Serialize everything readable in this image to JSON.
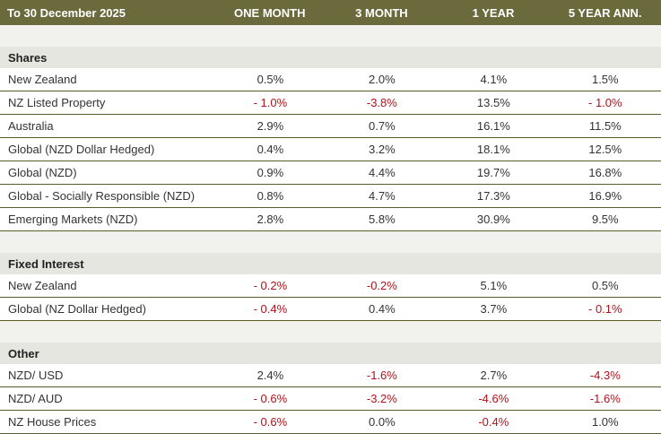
{
  "header": {
    "period": "To 30 December 2025",
    "columns": [
      "ONE MONTH",
      "3 MONTH",
      "1 YEAR",
      "5 YEAR ANN."
    ]
  },
  "sections": [
    {
      "title": "Shares",
      "rows": [
        {
          "label": "New Zealand",
          "values": [
            "0.5%",
            "2.0%",
            "4.1%",
            "1.5%"
          ]
        },
        {
          "label": "NZ Listed Property",
          "values": [
            "- 1.0%",
            "-3.8%",
            "13.5%",
            "- 1.0%"
          ]
        },
        {
          "label": "Australia",
          "values": [
            "2.9%",
            "0.7%",
            "16.1%",
            "11.5%"
          ]
        },
        {
          "label": "Global (NZD Dollar Hedged)",
          "values": [
            "0.4%",
            "3.2%",
            "18.1%",
            "12.5%"
          ]
        },
        {
          "label": "Global (NZD)",
          "values": [
            "0.9%",
            "4.4%",
            "19.7%",
            "16.8%"
          ]
        },
        {
          "label": "Global -  Socially Responsible (NZD)",
          "values": [
            "0.8%",
            "4.7%",
            "17.3%",
            "16.9%"
          ]
        },
        {
          "label": "Emerging Markets (NZD)",
          "values": [
            "2.8%",
            "5.8%",
            "30.9%",
            "9.5%"
          ]
        }
      ]
    },
    {
      "title": "Fixed Interest",
      "rows": [
        {
          "label": "New Zealand",
          "values": [
            "- 0.2%",
            "-0.2%",
            "5.1%",
            "0.5%"
          ]
        },
        {
          "label": "Global (NZ Dollar Hedged)",
          "values": [
            "- 0.4%",
            "0.4%",
            "3.7%",
            "- 0.1%"
          ]
        }
      ]
    },
    {
      "title": "Other",
      "rows": [
        {
          "label": "NZD/ USD",
          "values": [
            "2.4%",
            "-1.6%",
            "2.7%",
            "-4.3%"
          ]
        },
        {
          "label": "NZD/ AUD",
          "values": [
            "- 0.6%",
            "-3.2%",
            "-4.6%",
            "-1.6%"
          ]
        },
        {
          "label": "NZ House Prices",
          "values": [
            "- 0.6%",
            "0.0%",
            "-0.4%",
            "1.0%"
          ]
        }
      ]
    }
  ],
  "colors": {
    "header_bg": "#6b6a3c",
    "negative": "#b0121b",
    "section_bg": "#e4e6df",
    "band_bg": "#f1f2ed"
  }
}
